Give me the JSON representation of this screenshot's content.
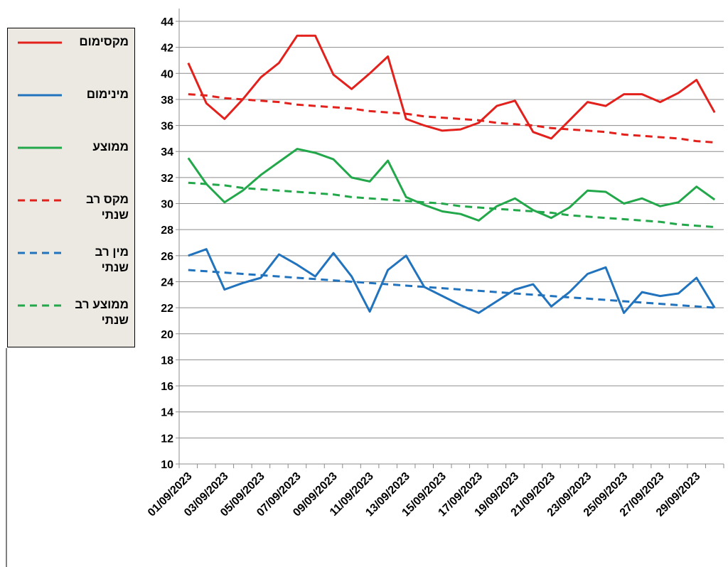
{
  "chart_data": {
    "type": "line",
    "categories": [
      "01/09/2023",
      null,
      "03/09/2023",
      null,
      "05/09/2023",
      null,
      "07/09/2023",
      null,
      "09/09/2023",
      null,
      "11/09/2023",
      null,
      "13/09/2023",
      null,
      "15/09/2023",
      null,
      "17/09/2023",
      null,
      "19/09/2023",
      null,
      "21/09/2023",
      null,
      "23/09/2023",
      null,
      "25/09/2023",
      null,
      "27/09/2023",
      null,
      "29/09/2023",
      null
    ],
    "series": [
      {
        "name": "מקסימום",
        "color": "#e3211c",
        "dashed": false,
        "values": [
          40.8,
          37.7,
          36.5,
          38.0,
          39.7,
          40.8,
          42.9,
          42.9,
          39.9,
          38.8,
          40.0,
          41.3,
          36.5,
          36.0,
          35.6,
          35.7,
          36.2,
          37.5,
          37.9,
          35.5,
          35.0,
          36.4,
          37.8,
          37.5,
          38.4,
          38.4,
          37.8,
          38.5,
          39.5,
          37.0
        ]
      },
      {
        "name": "מינימום",
        "color": "#2173bd",
        "dashed": false,
        "values": [
          26.0,
          26.5,
          23.4,
          23.9,
          24.3,
          26.1,
          25.3,
          24.4,
          26.2,
          24.4,
          21.7,
          24.9,
          26.0,
          23.6,
          22.9,
          22.2,
          21.6,
          22.5,
          23.4,
          23.8,
          22.1,
          23.2,
          24.6,
          25.1,
          21.6,
          23.2,
          22.9,
          23.1,
          24.3,
          22.0
        ]
      },
      {
        "name": "ממוצע",
        "color": "#22a84a",
        "dashed": false,
        "values": [
          33.5,
          31.5,
          30.1,
          31.0,
          32.2,
          33.2,
          34.2,
          33.9,
          33.4,
          32.0,
          31.7,
          33.3,
          30.5,
          29.9,
          29.4,
          29.2,
          28.7,
          29.8,
          30.4,
          29.5,
          28.9,
          29.7,
          31.0,
          30.9,
          30.0,
          30.4,
          29.8,
          30.1,
          31.3,
          30.3
        ]
      },
      {
        "name": "מקס רב שנתי",
        "color": "#e3211c",
        "dashed": true,
        "values": [
          38.4,
          38.3,
          38.1,
          38.0,
          37.9,
          37.8,
          37.6,
          37.5,
          37.4,
          37.3,
          37.1,
          37.0,
          36.9,
          36.7,
          36.6,
          36.5,
          36.4,
          36.2,
          36.1,
          36.0,
          35.8,
          35.7,
          35.6,
          35.5,
          35.3,
          35.2,
          35.1,
          35.0,
          34.8,
          34.7
        ]
      },
      {
        "name": "מין רב שנתי",
        "color": "#2173bd",
        "dashed": true,
        "values": [
          24.9,
          24.8,
          24.7,
          24.6,
          24.5,
          24.4,
          24.3,
          24.2,
          24.1,
          24.0,
          23.9,
          23.8,
          23.7,
          23.6,
          23.5,
          23.4,
          23.3,
          23.2,
          23.1,
          23.0,
          22.9,
          22.8,
          22.7,
          22.6,
          22.5,
          22.4,
          22.3,
          22.2,
          22.1,
          22.0
        ]
      },
      {
        "name": "ממוצע רב שנתי",
        "color": "#22a84a",
        "dashed": true,
        "values": [
          31.6,
          31.5,
          31.4,
          31.2,
          31.1,
          31.0,
          30.9,
          30.8,
          30.7,
          30.5,
          30.4,
          30.3,
          30.2,
          30.1,
          30.0,
          29.8,
          29.7,
          29.6,
          29.5,
          29.4,
          29.3,
          29.1,
          29.0,
          28.9,
          28.8,
          28.7,
          28.6,
          28.4,
          28.3,
          28.2
        ]
      }
    ],
    "ylim": [
      10,
      44
    ],
    "yticks": [
      10,
      12,
      14,
      16,
      18,
      20,
      22,
      24,
      26,
      28,
      30,
      32,
      34,
      36,
      38,
      40,
      42,
      44
    ],
    "grid": true
  }
}
